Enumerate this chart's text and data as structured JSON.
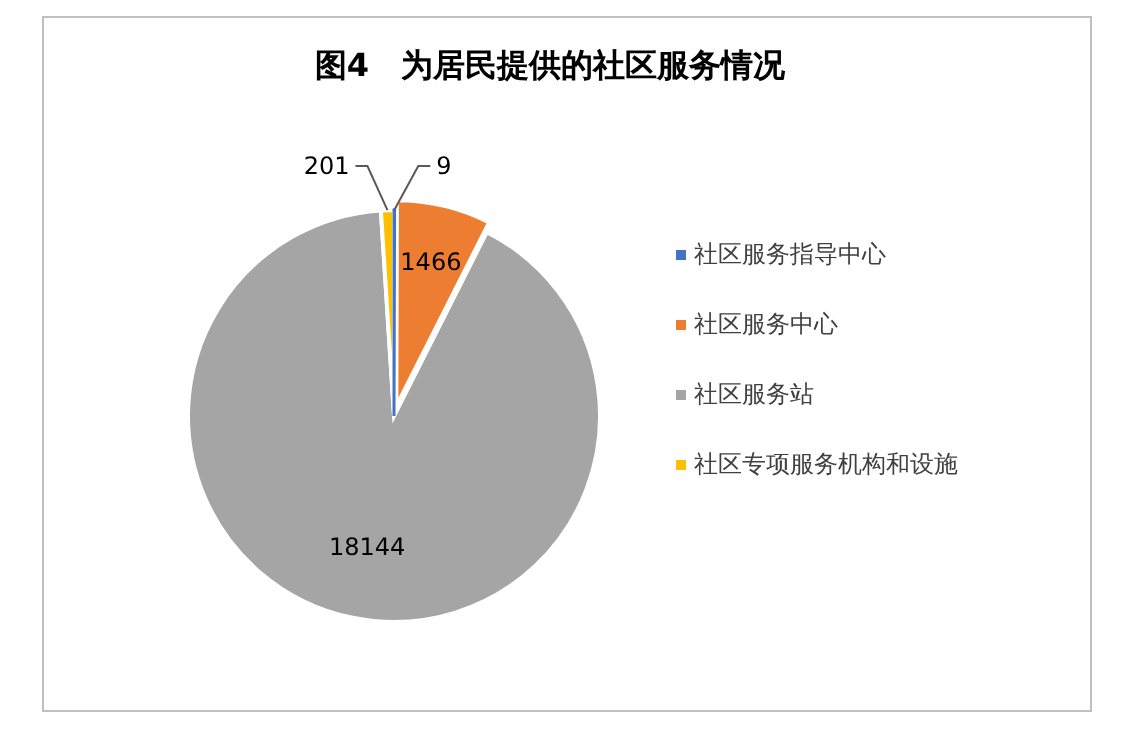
{
  "chart_data": {
    "type": "pie",
    "title": "图4　为居民提供的社区服务情况",
    "categories": [
      "社区服务指导中心",
      "社区服务中心",
      "社区服务站",
      "社区专项服务机构和设施"
    ],
    "values": [
      9,
      1466,
      18144,
      201
    ],
    "colors": [
      "#4472c4",
      "#ed7d31",
      "#a5a5a5",
      "#ffc000"
    ],
    "data_labels": true,
    "legend": "right"
  }
}
